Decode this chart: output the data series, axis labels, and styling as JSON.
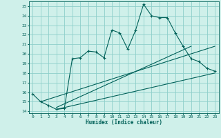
{
  "xlabel": "Humidex (Indice chaleur)",
  "bg_color": "#cff0ea",
  "grid_color": "#8ecfca",
  "line_color": "#006058",
  "xlim": [
    -0.5,
    23.5
  ],
  "ylim": [
    13.8,
    25.5
  ],
  "xticks": [
    0,
    1,
    2,
    3,
    4,
    5,
    6,
    7,
    8,
    9,
    10,
    11,
    12,
    13,
    14,
    15,
    16,
    17,
    18,
    19,
    20,
    21,
    22,
    23
  ],
  "yticks": [
    14,
    15,
    16,
    17,
    18,
    19,
    20,
    21,
    22,
    23,
    24,
    25
  ],
  "main_x": [
    0,
    1,
    2,
    3,
    4,
    5,
    6,
    7,
    8,
    9,
    10,
    11,
    12,
    13,
    14,
    15,
    16,
    17,
    18,
    19,
    20,
    21,
    22,
    23
  ],
  "main_y": [
    15.8,
    15.0,
    14.6,
    14.2,
    14.3,
    19.5,
    19.6,
    20.3,
    20.2,
    19.6,
    22.5,
    22.2,
    20.5,
    22.5,
    25.2,
    24.0,
    23.8,
    23.8,
    22.2,
    20.8,
    19.5,
    19.2,
    18.5,
    18.2
  ],
  "line1_x": [
    1,
    23
  ],
  "line1_y": [
    15.0,
    20.8
  ],
  "line2_x": [
    3,
    23
  ],
  "line2_y": [
    14.2,
    18.0
  ],
  "line3_x": [
    3,
    20
  ],
  "line3_y": [
    14.4,
    20.8
  ]
}
